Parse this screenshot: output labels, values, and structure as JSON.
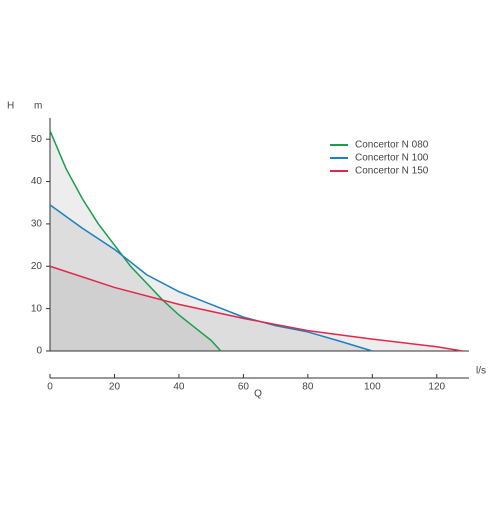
{
  "chart_data": {
    "type": "line",
    "y_label": "H",
    "y_unit": "m",
    "x_label": "Q",
    "x_unit": "l/s",
    "xlim": [
      0,
      130
    ],
    "xticks": [
      0,
      20,
      40,
      60,
      80,
      100,
      120
    ],
    "ylim": [
      0,
      55
    ],
    "yticks": [
      0,
      10,
      20,
      30,
      40,
      50
    ],
    "legend": "top-right",
    "series": [
      {
        "name": "Concertor N 080",
        "color": "#1a9e4a",
        "x": [
          0,
          5,
          10,
          15,
          20,
          25,
          30,
          35,
          40,
          45,
          50,
          53
        ],
        "values": [
          52,
          43,
          36,
          30,
          25,
          20,
          16,
          12,
          8.5,
          5.5,
          2.5,
          0
        ]
      },
      {
        "name": "Concertor N 100",
        "color": "#1f7fc0",
        "x": [
          0,
          10,
          20,
          30,
          40,
          50,
          60,
          70,
          80,
          90,
          100
        ],
        "values": [
          34.5,
          29,
          24,
          18,
          14,
          11,
          8,
          6,
          4.5,
          2.3,
          0
        ]
      },
      {
        "name": "Concertor N 150",
        "color": "#e0294a",
        "x": [
          0,
          20,
          40,
          60,
          80,
          100,
          120,
          128
        ],
        "values": [
          20,
          15,
          11,
          7.7,
          4.8,
          2.8,
          1,
          0
        ]
      }
    ]
  }
}
